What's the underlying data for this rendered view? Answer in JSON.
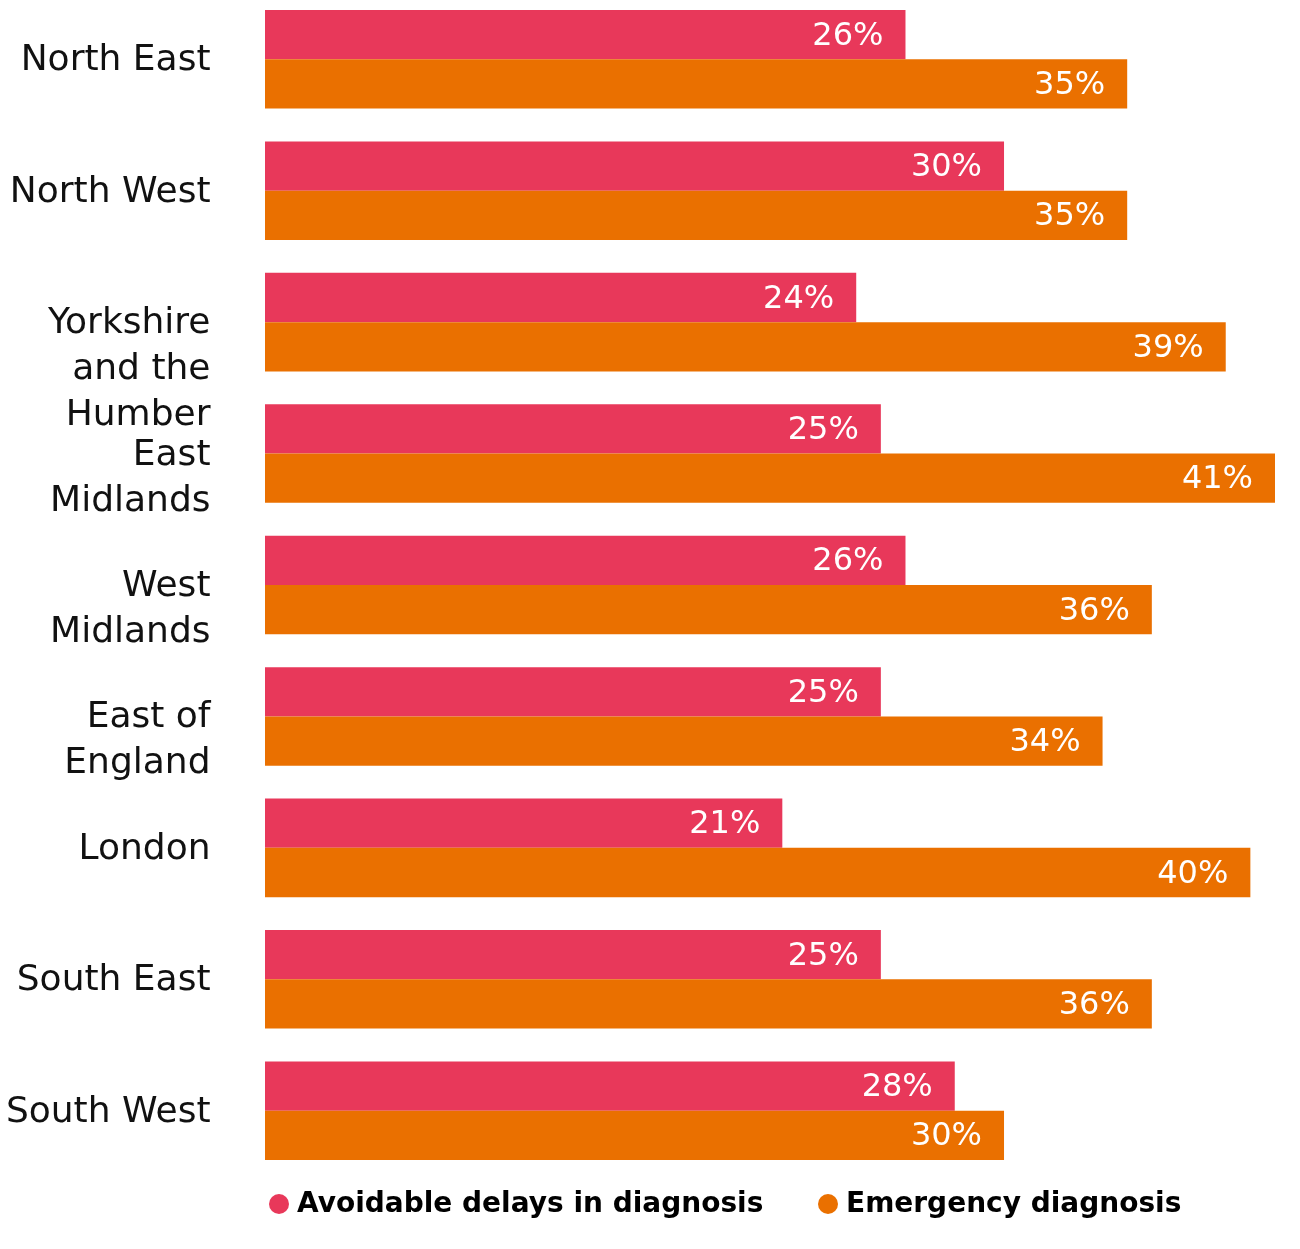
{
  "chart_data": {
    "type": "bar",
    "orientation": "horizontal",
    "categories": [
      "North East",
      "North West",
      "Yorkshire and the Humber",
      "East Midlands",
      "West Midlands",
      "East of England",
      "London",
      "South East",
      "South West"
    ],
    "series": [
      {
        "name": "Avoidable delays in diagnosis",
        "color": "#e8385a",
        "values": [
          26,
          30,
          24,
          25,
          26,
          25,
          21,
          25,
          28
        ],
        "value_labels": [
          "26%",
          "30%",
          "24%",
          "25%",
          "26%",
          "25%",
          "21%",
          "25%",
          "28%"
        ]
      },
      {
        "name": "Emergency diagnosis",
        "color": "#ea7000",
        "values": [
          35,
          35,
          39,
          41,
          36,
          34,
          40,
          36,
          30
        ],
        "value_labels": [
          "35%",
          "35%",
          "39%",
          "41%",
          "36%",
          "34%",
          "40%",
          "36%",
          "30%"
        ]
      }
    ],
    "legend": "bottom",
    "grid": false
  }
}
